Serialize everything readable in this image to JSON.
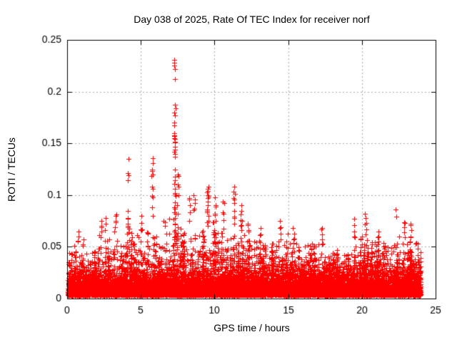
{
  "window": {
    "background": "#ffffff"
  },
  "chart_data": {
    "type": "scatter",
    "title": "Day 038 of 2025, Rate Of TEC Index for receiver norf",
    "xlabel": "GPS time / hours",
    "ylabel": "ROTI / TECUs",
    "xlim": [
      0,
      25
    ],
    "ylim": [
      0,
      0.25
    ],
    "xticks": [
      {
        "v": 0,
        "label": "0"
      },
      {
        "v": 5,
        "label": "5"
      },
      {
        "v": 10,
        "label": "10"
      },
      {
        "v": 15,
        "label": "15"
      },
      {
        "v": 20,
        "label": "20"
      },
      {
        "v": 25,
        "label": "25"
      }
    ],
    "yticks": [
      {
        "v": 0,
        "label": "0"
      },
      {
        "v": 0.05,
        "label": "0.05"
      },
      {
        "v": 0.1,
        "label": "0.1"
      },
      {
        "v": 0.15,
        "label": "0.15"
      },
      {
        "v": 0.2,
        "label": "0.2"
      },
      {
        "v": 0.25,
        "label": "0.25"
      }
    ],
    "grid": {
      "show": true,
      "style": "dashed",
      "color": "#a8a8a8"
    },
    "frame_color": "#000000",
    "marker": {
      "glyph": "+",
      "color": "#ff0000",
      "size": 7
    },
    "data_time_range": [
      0.05,
      24.0
    ],
    "baseline": {
      "seed": 2025038,
      "epochs_per_hour": 210,
      "y_floor": 0.003,
      "exp_mean_low": 0.0065,
      "exp_mean_mid": 0.013,
      "p_mid": 0.38,
      "p_streak": 0.055
    },
    "envelope_per_half_hour": [
      0.045,
      0.055,
      0.05,
      0.042,
      0.062,
      0.06,
      0.07,
      0.055,
      0.08,
      0.06,
      0.075,
      0.068,
      0.06,
      0.07,
      0.09,
      0.08,
      0.07,
      0.06,
      0.065,
      0.072,
      0.075,
      0.07,
      0.06,
      0.065,
      0.065,
      0.055,
      0.06,
      0.05,
      0.06,
      0.052,
      0.065,
      0.055,
      0.05,
      0.055,
      0.055,
      0.045,
      0.047,
      0.045,
      0.055,
      0.05,
      0.065,
      0.055,
      0.06,
      0.055,
      0.055,
      0.06,
      0.06,
      0.055
    ],
    "spikes": [
      {
        "t": 0.75,
        "ys": [
          0.065,
          0.06,
          0.056
        ]
      },
      {
        "t": 1.1,
        "ys": [
          0.057,
          0.052
        ]
      },
      {
        "t": 2.3,
        "ys": [
          0.075,
          0.07,
          0.065
        ]
      },
      {
        "t": 2.6,
        "ys": [
          0.078,
          0.072,
          0.066
        ]
      },
      {
        "t": 3.3,
        "ys": [
          0.081,
          0.075,
          0.069
        ]
      },
      {
        "t": 4.15,
        "ys": [
          0.135,
          0.121,
          0.114,
          0.085,
          0.078,
          0.07,
          0.064
        ]
      },
      {
        "t": 5.05,
        "ys": [
          0.08,
          0.073,
          0.067
        ]
      },
      {
        "t": 5.78,
        "ys": [
          0.136,
          0.131,
          0.125,
          0.12,
          0.108,
          0.099,
          0.088,
          0.08
        ]
      },
      {
        "t": 6.6,
        "ys": [
          0.075,
          0.07
        ]
      },
      {
        "t": 7.3,
        "ys": [
          0.231,
          0.228,
          0.225,
          0.222,
          0.212,
          0.187,
          0.18,
          0.17,
          0.16,
          0.157,
          0.154,
          0.151,
          0.147,
          0.144,
          0.14,
          0.137,
          0.125,
          0.118,
          0.114,
          0.111,
          0.106,
          0.102,
          0.099,
          0.093,
          0.088,
          0.083,
          0.078,
          0.072,
          0.066,
          0.06,
          0.054
        ]
      },
      {
        "t": 7.5,
        "ys": [
          0.12,
          0.11,
          0.1,
          0.09,
          0.082
        ]
      },
      {
        "t": 8.3,
        "ys": [
          0.097,
          0.09,
          0.083,
          0.075
        ]
      },
      {
        "t": 8.62,
        "ys": [
          0.1,
          0.096,
          0.092,
          0.087
        ]
      },
      {
        "t": 9.55,
        "ys": [
          0.108,
          0.104,
          0.1,
          0.097,
          0.094,
          0.09,
          0.086,
          0.083,
          0.08,
          0.075,
          0.07
        ]
      },
      {
        "t": 10.05,
        "ys": [
          0.098,
          0.09,
          0.082,
          0.075
        ]
      },
      {
        "t": 10.6,
        "ys": [
          0.094,
          0.083,
          0.076
        ]
      },
      {
        "t": 11.33,
        "ys": [
          0.108,
          0.103,
          0.097,
          0.092,
          0.085,
          0.079,
          0.072
        ]
      },
      {
        "t": 11.8,
        "ys": [
          0.09,
          0.085,
          0.081,
          0.076,
          0.071,
          0.066
        ]
      },
      {
        "t": 12.3,
        "ys": [
          0.072,
          0.066
        ]
      },
      {
        "t": 13.1,
        "ys": [
          0.068,
          0.062
        ]
      },
      {
        "t": 14.45,
        "ys": [
          0.075,
          0.069,
          0.063,
          0.057
        ]
      },
      {
        "t": 15.35,
        "ys": [
          0.068,
          0.063,
          0.058,
          0.054
        ]
      },
      {
        "t": 17.3,
        "ys": [
          0.068,
          0.062,
          0.057,
          0.053
        ]
      },
      {
        "t": 18.3,
        "ys": [
          0.047,
          0.043
        ]
      },
      {
        "t": 19.45,
        "ys": [
          0.077,
          0.071,
          0.065,
          0.06
        ]
      },
      {
        "t": 20.25,
        "ys": [
          0.082,
          0.078,
          0.073,
          0.067,
          0.062
        ]
      },
      {
        "t": 21.1,
        "ys": [
          0.065,
          0.06
        ]
      },
      {
        "t": 22.3,
        "ys": [
          0.086,
          0.079
        ]
      },
      {
        "t": 22.9,
        "ys": [
          0.074,
          0.069,
          0.064,
          0.059
        ]
      },
      {
        "t": 23.3,
        "ys": [
          0.072,
          0.066,
          0.06
        ]
      }
    ]
  }
}
